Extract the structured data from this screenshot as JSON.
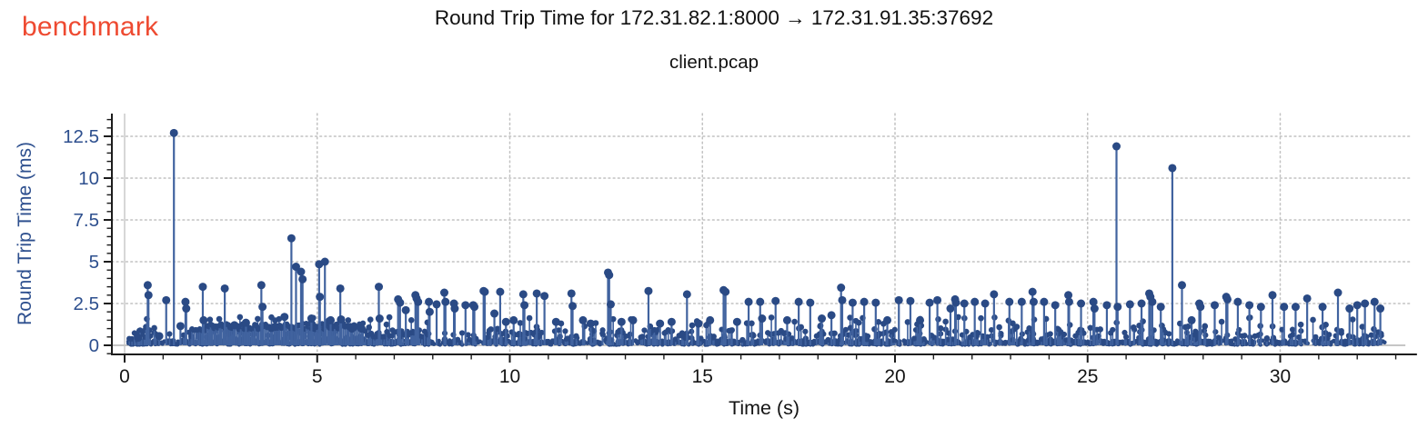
{
  "header": {
    "brand": "benchmark"
  },
  "chart_data": {
    "type": "stem",
    "title": "Round Trip Time for 172.31.82.1:8000 → 172.31.91.35:37692",
    "subtitle": "client.pcap",
    "xlabel": "Time (s)",
    "ylabel": "Round Trip Time (ms)",
    "legend": false,
    "grid": true,
    "x_ticks_major": [
      0,
      5,
      10,
      15,
      20,
      25,
      30
    ],
    "x_minor_step": 1,
    "x_range": [
      -0.33,
      33.55
    ],
    "y_ticks_major": [
      0,
      2.5,
      5,
      7.5,
      10,
      12.5
    ],
    "y_minor_step": 0.5,
    "y_range": [
      -0.54,
      13.85
    ],
    "data_t_end": 32.72,
    "baseline_t_end": 33.25,
    "colors": {
      "marker": "#2a4a85",
      "stem": "#41639f",
      "baseline": "#c6c6c6",
      "grid_dotted": "#c2c2c2",
      "zero_gridline": "#cdcdcd",
      "axis": "#1c1c1c",
      "x_text": "#141414",
      "y_text": "#2d4f8e",
      "title_text": "#111111",
      "brand": "#ee4a31"
    },
    "spikes": [
      [
        0.35,
        0.45
      ],
      [
        0.6,
        3.6
      ],
      [
        0.62,
        3.0
      ],
      [
        0.9,
        0.55
      ],
      [
        1.08,
        2.7
      ],
      [
        1.28,
        12.7
      ],
      [
        1.45,
        1.15
      ],
      [
        1.58,
        2.6
      ],
      [
        1.6,
        2.2
      ],
      [
        2.03,
        3.5
      ],
      [
        2.05,
        1.5
      ],
      [
        2.6,
        3.4
      ],
      [
        2.85,
        1.2
      ],
      [
        3.15,
        1.35
      ],
      [
        3.55,
        3.6
      ],
      [
        3.58,
        2.3
      ],
      [
        3.9,
        1.1
      ],
      [
        4.15,
        1.7
      ],
      [
        4.33,
        6.4
      ],
      [
        4.45,
        4.7
      ],
      [
        4.58,
        4.4
      ],
      [
        4.62,
        3.95
      ],
      [
        4.85,
        1.6
      ],
      [
        5.05,
        4.85
      ],
      [
        5.07,
        2.9
      ],
      [
        5.2,
        5.0
      ],
      [
        5.35,
        1.5
      ],
      [
        5.6,
        3.4
      ],
      [
        5.62,
        1.55
      ],
      [
        5.9,
        1.0
      ],
      [
        6.15,
        1.0
      ],
      [
        6.6,
        3.5
      ],
      [
        6.62,
        1.6
      ],
      [
        7.1,
        2.75
      ],
      [
        7.15,
        2.55
      ],
      [
        7.3,
        2.1
      ],
      [
        7.55,
        3.0
      ],
      [
        7.58,
        2.8
      ],
      [
        7.62,
        2.6
      ],
      [
        7.9,
        2.6
      ],
      [
        7.92,
        2.0
      ],
      [
        8.1,
        2.45
      ],
      [
        8.3,
        3.15
      ],
      [
        8.33,
        2.6
      ],
      [
        8.55,
        2.5
      ],
      [
        8.57,
        2.2
      ],
      [
        8.85,
        2.4
      ],
      [
        9.05,
        2.4
      ],
      [
        9.08,
        2.3
      ],
      [
        9.32,
        3.25
      ],
      [
        9.35,
        3.2
      ],
      [
        9.6,
        1.9
      ],
      [
        9.75,
        3.2
      ],
      [
        9.9,
        1.4
      ],
      [
        10.1,
        1.5
      ],
      [
        10.35,
        3.05
      ],
      [
        10.38,
        2.4
      ],
      [
        10.7,
        3.1
      ],
      [
        10.9,
        2.95
      ],
      [
        11.2,
        1.4
      ],
      [
        11.6,
        3.1
      ],
      [
        11.63,
        2.35
      ],
      [
        11.9,
        1.5
      ],
      [
        12.1,
        1.3
      ],
      [
        12.55,
        4.35
      ],
      [
        12.58,
        4.2
      ],
      [
        12.62,
        2.45
      ],
      [
        12.9,
        1.4
      ],
      [
        13.2,
        1.5
      ],
      [
        13.6,
        3.25
      ],
      [
        13.9,
        1.3
      ],
      [
        14.2,
        1.4
      ],
      [
        14.6,
        3.05
      ],
      [
        14.9,
        1.3
      ],
      [
        15.2,
        1.5
      ],
      [
        15.55,
        3.3
      ],
      [
        15.6,
        3.2
      ],
      [
        15.9,
        1.4
      ],
      [
        16.2,
        2.6
      ],
      [
        16.5,
        2.6
      ],
      [
        16.55,
        1.6
      ],
      [
        16.9,
        2.65
      ],
      [
        17.2,
        1.5
      ],
      [
        17.5,
        2.6
      ],
      [
        17.8,
        2.55
      ],
      [
        18.1,
        1.6
      ],
      [
        18.35,
        1.8
      ],
      [
        18.6,
        3.45
      ],
      [
        18.63,
        2.7
      ],
      [
        18.9,
        2.55
      ],
      [
        19.2,
        2.6
      ],
      [
        19.5,
        2.55
      ],
      [
        19.8,
        1.5
      ],
      [
        20.1,
        2.7
      ],
      [
        20.4,
        2.65
      ],
      [
        20.65,
        1.5
      ],
      [
        20.9,
        2.55
      ],
      [
        21.1,
        2.7
      ],
      [
        21.44,
        2.2
      ],
      [
        21.56,
        2.75
      ],
      [
        21.58,
        2.55
      ],
      [
        21.8,
        2.5
      ],
      [
        22.07,
        2.6
      ],
      [
        22.34,
        2.5
      ],
      [
        22.57,
        3.05
      ],
      [
        22.97,
        2.6
      ],
      [
        23.29,
        2.6
      ],
      [
        23.57,
        3.2
      ],
      [
        23.6,
        2.6
      ],
      [
        23.87,
        2.6
      ],
      [
        24.16,
        2.4
      ],
      [
        24.5,
        3.0
      ],
      [
        24.52,
        2.6
      ],
      [
        24.83,
        2.5
      ],
      [
        25.15,
        2.6
      ],
      [
        25.18,
        2.2
      ],
      [
        25.5,
        2.4
      ],
      [
        25.75,
        11.9
      ],
      [
        25.78,
        2.3
      ],
      [
        26.1,
        2.45
      ],
      [
        26.4,
        2.5
      ],
      [
        26.6,
        3.1
      ],
      [
        26.63,
        2.9
      ],
      [
        26.68,
        2.6
      ],
      [
        26.9,
        2.3
      ],
      [
        27.2,
        10.6
      ],
      [
        27.45,
        3.6
      ],
      [
        27.7,
        1.5
      ],
      [
        27.9,
        2.5
      ],
      [
        27.93,
        2.3
      ],
      [
        28.3,
        2.4
      ],
      [
        28.6,
        2.9
      ],
      [
        28.63,
        2.75
      ],
      [
        28.9,
        2.6
      ],
      [
        29.2,
        2.4
      ],
      [
        29.5,
        2.3
      ],
      [
        29.8,
        3.0
      ],
      [
        30.1,
        2.3
      ],
      [
        30.4,
        2.3
      ],
      [
        30.7,
        2.8
      ],
      [
        31.1,
        2.3
      ],
      [
        31.5,
        3.15
      ],
      [
        31.8,
        2.2
      ],
      [
        32.0,
        2.4
      ],
      [
        32.2,
        2.5
      ],
      [
        32.45,
        2.6
      ],
      [
        32.6,
        2.2
      ]
    ],
    "bands": [
      {
        "t_start": 1.75,
        "t_end": 2.12,
        "step": 0.05,
        "y_min": 0.8,
        "y_max": 1.0,
        "seed": 41
      },
      {
        "t_start": 2.14,
        "t_end": 6.2,
        "step": 0.046,
        "y_min": 0.95,
        "y_max": 1.32,
        "seed": 42
      },
      {
        "t_start": 6.25,
        "t_end": 7.9,
        "step": 0.07,
        "y_min": 0.5,
        "y_max": 0.85,
        "seed": 43
      }
    ],
    "noise_layers": [
      {
        "name": "base-mass",
        "t_start": 0.08,
        "t_end": 32.72,
        "count": 1900,
        "y_min": 0.03,
        "y_max": 0.3,
        "radius": 2.3,
        "stems": false,
        "seed": 7
      },
      {
        "name": "small-bumps",
        "t_start": 0.1,
        "t_end": 32.7,
        "count": 430,
        "y_min": 0.3,
        "y_max": 0.95,
        "radius": 3.1,
        "stems": true,
        "seed": 11
      },
      {
        "name": "mid-bumps",
        "t_start": 0.2,
        "t_end": 32.6,
        "count": 110,
        "y_min": 0.95,
        "y_max": 1.7,
        "radius": 3.3,
        "stems": true,
        "seed": 23
      }
    ]
  }
}
